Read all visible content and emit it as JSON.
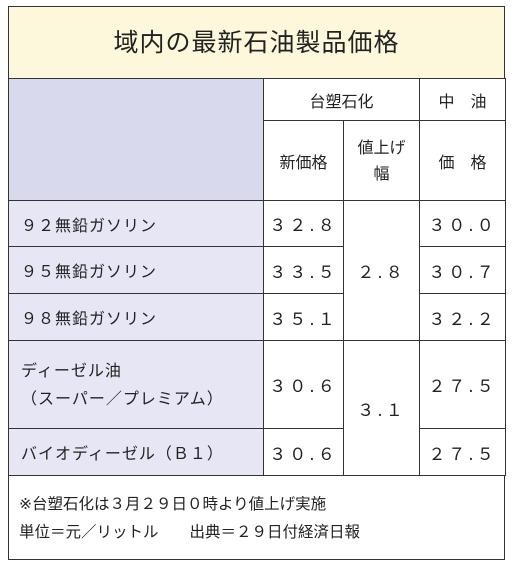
{
  "title": "域内の最新石油製品価格",
  "colors": {
    "title_bg": "#fdf8dc",
    "header_bg": "#d9d9ee",
    "row_bg": "#e7e6f5",
    "border": "#333333"
  },
  "header": {
    "company_formosa": "台塑石化",
    "company_cpc": "中　油",
    "new_price": "新価格",
    "increase_line1": "値上げ",
    "increase_line2": "幅",
    "cpc_price": "価　格"
  },
  "rows": [
    {
      "name": "９２無鉛ガソリン",
      "formosa_price": "３２.８",
      "cpc_price": "３０.０"
    },
    {
      "name": "９５無鉛ガソリン",
      "formosa_price": "３３.５",
      "cpc_price": "３０.７"
    },
    {
      "name": "９８無鉛ガソリン",
      "formosa_price": "３５.１",
      "cpc_price": "３２.２"
    },
    {
      "name_line1": "ディーゼル油",
      "name_line2": "（スーパー／プレミアム）",
      "formosa_price": "３０.６",
      "cpc_price": "２７.５"
    },
    {
      "name": "バイオディーゼル（Ｂ１）",
      "formosa_price": "３０.６",
      "cpc_price": "２７.５"
    }
  ],
  "increase_gasoline": "２.８",
  "increase_diesel": "３.１",
  "notes": {
    "line1": "※台塑石化は３月２９日０時より値上げ実施",
    "line2": "単位＝元／リットル　　出典＝２９日付経済日報"
  }
}
